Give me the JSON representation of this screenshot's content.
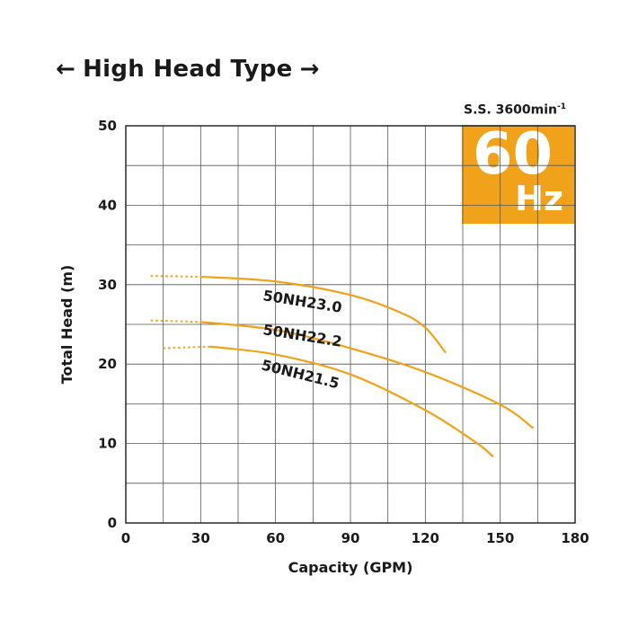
{
  "heading": {
    "left_arrow": "←",
    "text": "High Head Type",
    "right_arrow": "→"
  },
  "speed": {
    "text": "S.S. 3600min",
    "sup": "-1"
  },
  "hz_badge": {
    "number": "60",
    "unit": "Hz",
    "color": "#f0a21a"
  },
  "chart_data": {
    "type": "line",
    "xlabel": "Capacity (GPM)",
    "ylabel": "Total Head (m)",
    "xlim": [
      0,
      180
    ],
    "ylim": [
      0,
      50
    ],
    "x_ticks": [
      0,
      30,
      60,
      90,
      120,
      150,
      180
    ],
    "y_ticks": [
      0,
      10,
      20,
      30,
      40,
      50
    ],
    "grid": true,
    "line_color": "#f0a21a",
    "series": [
      {
        "name": "50NH23.0",
        "dotted_points": [
          [
            10,
            31.1
          ],
          [
            30,
            31.0
          ]
        ],
        "points": [
          [
            30,
            31.0
          ],
          [
            60,
            30.4
          ],
          [
            90,
            28.7
          ],
          [
            110,
            26.5
          ],
          [
            120,
            24.6
          ],
          [
            128,
            21.5
          ]
        ]
      },
      {
        "name": "50NH22.2",
        "dotted_points": [
          [
            10,
            25.5
          ],
          [
            30,
            25.3
          ]
        ],
        "points": [
          [
            30,
            25.3
          ],
          [
            60,
            24.3
          ],
          [
            90,
            22.0
          ],
          [
            120,
            19.0
          ],
          [
            150,
            14.9
          ],
          [
            163,
            12.0
          ]
        ]
      },
      {
        "name": "50NH21.5",
        "dotted_points": [
          [
            15,
            22.0
          ],
          [
            34,
            22.2
          ]
        ],
        "points": [
          [
            34,
            22.2
          ],
          [
            60,
            21.2
          ],
          [
            90,
            18.7
          ],
          [
            120,
            14.2
          ],
          [
            140,
            10.2
          ],
          [
            147,
            8.4
          ]
        ]
      }
    ]
  }
}
